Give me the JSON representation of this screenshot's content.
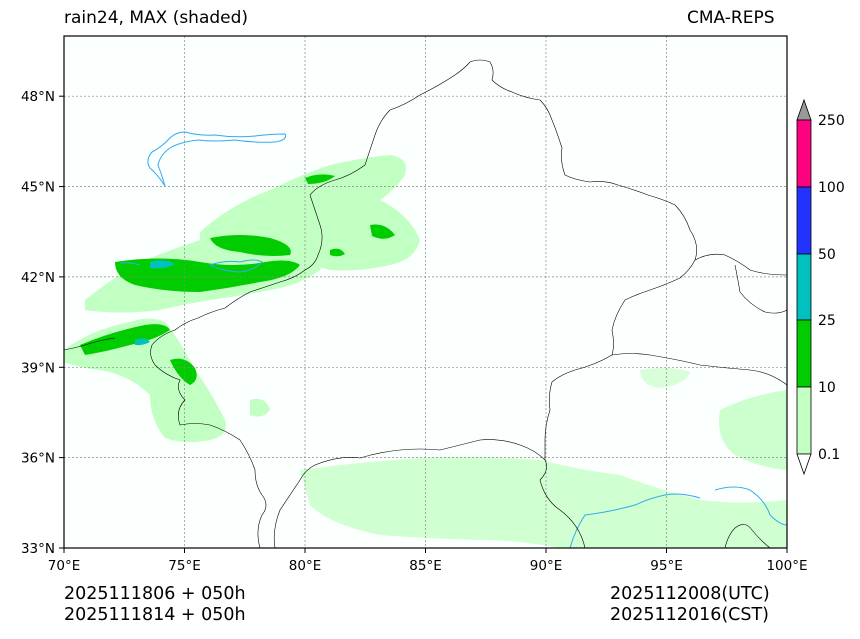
{
  "header": {
    "title_left": "rain24, MAX (shaded)",
    "title_right": "CMA-REPS"
  },
  "footer": {
    "run_line_1": "2025111806  +  050h",
    "run_line_2": "2025111814  +  050h",
    "valid_utc": "2025112008(UTC)",
    "valid_cst": "2025112016(CST)"
  },
  "map": {
    "lon_range": [
      70,
      100
    ],
    "lat_range": [
      33,
      50
    ],
    "lon_ticks": [
      "70°E",
      "75°E",
      "80°E",
      "85°E",
      "90°E",
      "95°E",
      "100°E"
    ],
    "lat_ticks": [
      "33°N",
      "36°N",
      "39°N",
      "42°N",
      "45°N",
      "48°N"
    ],
    "background_color": "#fbfffd",
    "border_color": "#000000",
    "river_color": "#33aaee"
  },
  "colorbar": {
    "levels": [
      "0.1",
      "10",
      "25",
      "50",
      "100",
      "250"
    ],
    "colors": [
      "#c2ffc2",
      "#00cc00",
      "#00c0c0",
      "#2233ff",
      "#ff0080"
    ],
    "over_color": "#999999",
    "under_color": "#ffffff"
  }
}
